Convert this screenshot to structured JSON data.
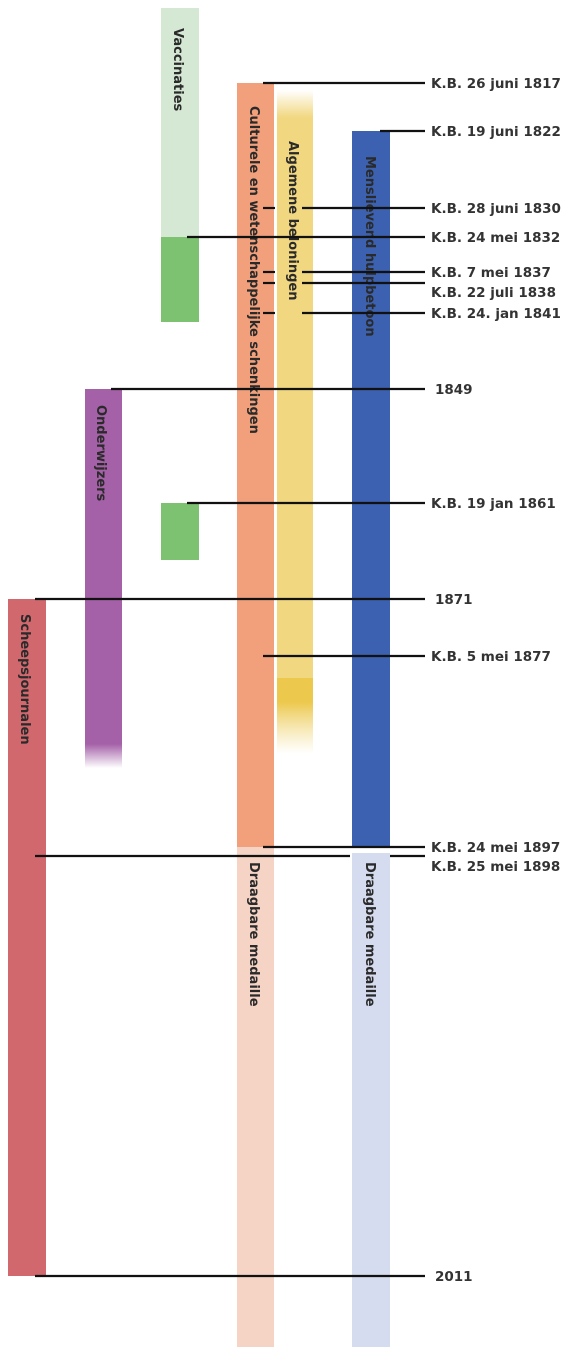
{
  "colors": {
    "vaccinaties_light": "#d5e8d4",
    "vaccinaties": "#7dc270",
    "onderwijzers": "#a461a8",
    "scheepsjournalen": "#d0686e",
    "culturele": "#f1a07b",
    "culturele_light": "#f6d4c5",
    "algemene": "#f1d77f",
    "algemene_dark": "#ecc84d",
    "menslievend": "#3b61b0",
    "menslievend_light": "#d6dcef",
    "line": "#111111"
  },
  "bars": {
    "vaccinaties": "Vaccinaties",
    "culturele": "Culturele en wetenschappelijke schenkingen",
    "algemene": "Algemene beloningen",
    "menslievend": "Menslievend hulpbetoon",
    "onderwijzers": "Onderwijzers",
    "scheepsjournalen": "Scheepsjournalen",
    "draagbare_culturele": "Draagbare medaille",
    "draagbare_menslievend": "Draagbare medaille"
  },
  "dates": [
    "K.B. 26 juni 1817",
    "K.B. 19 juni 1822",
    "K.B. 28 juni 1830",
    "K.B. 24 mei 1832",
    "K.B. 7 mei 1837",
    "K.B. 22 juli 1838",
    "K.B. 24. jan 1841",
    "1849",
    "K.B. 19 jan 1861",
    "1871",
    "K.B. 5 mei 1877",
    "K.B. 24 mei 1897",
    "K.B. 25 mei 1898",
    "2011"
  ]
}
